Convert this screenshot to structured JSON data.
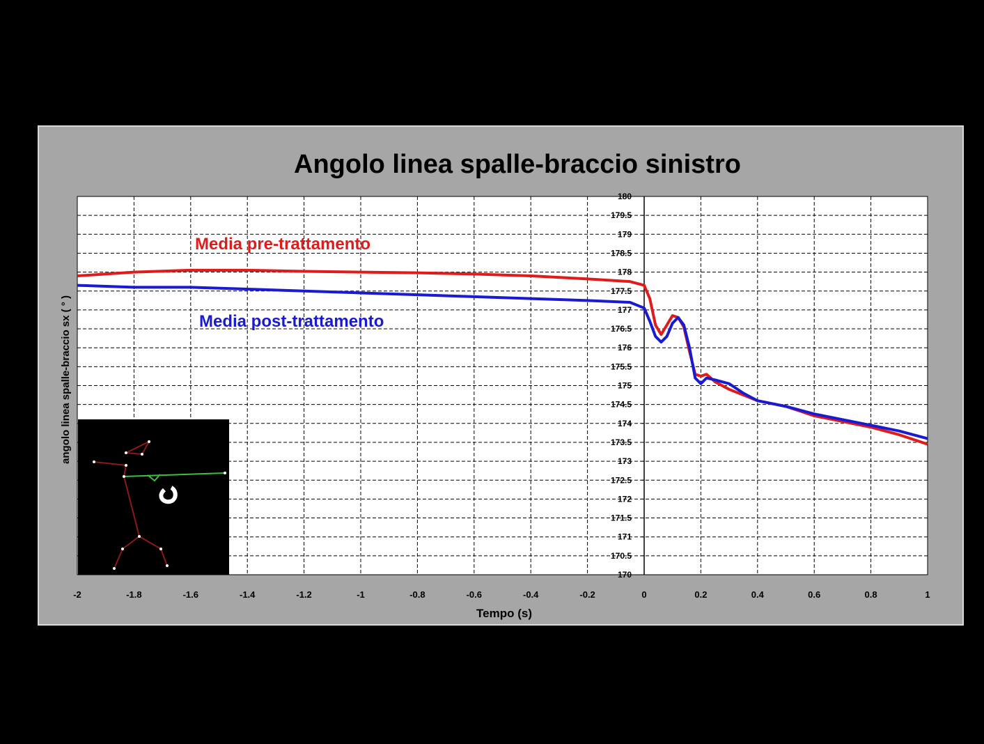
{
  "chart_data": {
    "type": "line",
    "title": "Angolo linea spalle-braccio sinistro",
    "x_label": "Tempo (s)",
    "y_label": "angolo linea spalle-braccio sx ( ° )",
    "x": [
      -2,
      -1.8,
      -1.6,
      -1.4,
      -1.2,
      -1,
      -0.8,
      -0.6,
      -0.4,
      -0.2,
      -0.05,
      0,
      0.02,
      0.04,
      0.06,
      0.08,
      0.1,
      0.12,
      0.14,
      0.16,
      0.18,
      0.2,
      0.22,
      0.25,
      0.3,
      0.35,
      0.4,
      0.5,
      0.6,
      0.7,
      0.8,
      0.9,
      1
    ],
    "series": [
      {
        "name": "Media pre-trattamento",
        "color": "#e01b1b",
        "values": [
          177.9,
          178.0,
          178.05,
          178.05,
          178.02,
          178.0,
          177.98,
          177.95,
          177.9,
          177.82,
          177.75,
          177.65,
          177.3,
          176.6,
          176.35,
          176.6,
          176.85,
          176.8,
          176.55,
          175.9,
          175.3,
          175.25,
          175.3,
          175.1,
          174.9,
          174.75,
          174.6,
          174.45,
          174.2,
          174.05,
          173.9,
          173.7,
          173.45
        ]
      },
      {
        "name": "Media post-trattamento",
        "color": "#1a1ad0",
        "values": [
          177.65,
          177.6,
          177.6,
          177.55,
          177.5,
          177.45,
          177.4,
          177.35,
          177.3,
          177.25,
          177.2,
          177.05,
          176.7,
          176.3,
          176.15,
          176.3,
          176.65,
          176.8,
          176.6,
          176.0,
          175.2,
          175.05,
          175.2,
          175.15,
          175.05,
          174.8,
          174.6,
          174.45,
          174.25,
          174.1,
          173.95,
          173.8,
          173.6
        ]
      }
    ],
    "xlim": [
      -2,
      1
    ],
    "xticks": [
      -2,
      -1.8,
      -1.6,
      -1.4,
      -1.2,
      -1,
      -0.8,
      -0.6,
      -0.4,
      -0.2,
      0,
      0.2,
      0.4,
      0.6,
      0.8,
      1
    ],
    "ylim": [
      170,
      180
    ],
    "yticks": [
      170,
      170.5,
      171,
      171.5,
      172,
      172.5,
      173,
      173.5,
      174,
      174.5,
      175,
      175.5,
      176,
      176.5,
      177,
      177.5,
      178,
      178.5,
      179,
      179.5,
      180
    ],
    "grid": true
  }
}
